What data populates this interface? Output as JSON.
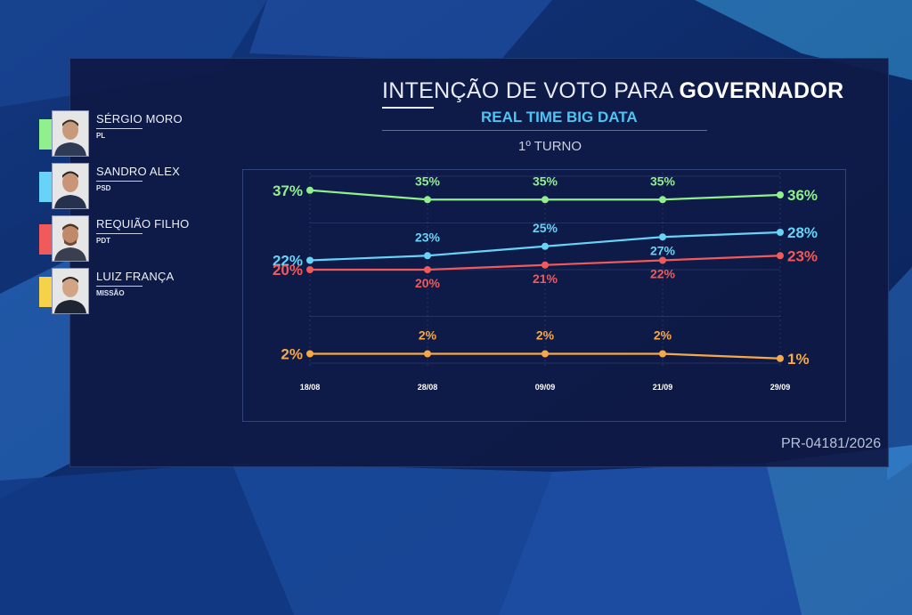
{
  "header": {
    "title_light": "INTENÇÃO DE VOTO PARA ",
    "title_bold": "GOVERNADOR",
    "subtitle": "REAL TIME BIG DATA",
    "round": "1º TURNO"
  },
  "footer": {
    "code": "PR-04181/2026"
  },
  "legend": [
    {
      "name": "SÉRGIO MORO",
      "party": "PL",
      "color": "#8ff08d"
    },
    {
      "name": "SANDRO ALEX",
      "party": "PSD",
      "color": "#67d3f7"
    },
    {
      "name": "REQUIÃO FILHO",
      "party": "PDT",
      "color": "#f05a5a"
    },
    {
      "name": "LUIZ FRANÇA",
      "party": "MISSÃO",
      "color": "#f6d24a"
    }
  ],
  "chart_data": {
    "type": "line",
    "title": "INTENÇÃO DE VOTO PARA GOVERNADOR",
    "subtitle": "REAL TIME BIG DATA",
    "xlabel": "",
    "ylabel": "",
    "categories": [
      "18/08",
      "28/08",
      "09/09",
      "21/09",
      "29/09"
    ],
    "ylim": [
      0,
      40
    ],
    "grid": true,
    "legend_position": "left",
    "series": [
      {
        "name": "SÉRGIO MORO",
        "color": "#8ff08d",
        "values": [
          37,
          35,
          35,
          35,
          36
        ],
        "labels": [
          "37%",
          "35%",
          "35%",
          "35%",
          "36%"
        ],
        "label_side": [
          "left",
          "above",
          "above",
          "above",
          "right"
        ]
      },
      {
        "name": "SANDRO ALEX",
        "color": "#67d3f7",
        "values": [
          22,
          23,
          25,
          27,
          28
        ],
        "labels": [
          "22%",
          "23%",
          "25%",
          "27%",
          "28%"
        ],
        "label_side": [
          "left",
          "above",
          "above",
          "below",
          "right"
        ]
      },
      {
        "name": "REQUIÃO FILHO",
        "color": "#f05a5a",
        "values": [
          20,
          20,
          21,
          22,
          23
        ],
        "labels": [
          "20%",
          "20%",
          "21%",
          "22%",
          "23%"
        ],
        "label_side": [
          "left",
          "below",
          "below",
          "below",
          "right"
        ]
      },
      {
        "name": "LUIZ FRANÇA",
        "color": "#f6a94a",
        "values": [
          2,
          2,
          2,
          2,
          1
        ],
        "labels": [
          "2%",
          "2%",
          "2%",
          "2%",
          "1%"
        ],
        "label_side": [
          "left",
          "above",
          "above",
          "above",
          "right"
        ]
      }
    ]
  }
}
